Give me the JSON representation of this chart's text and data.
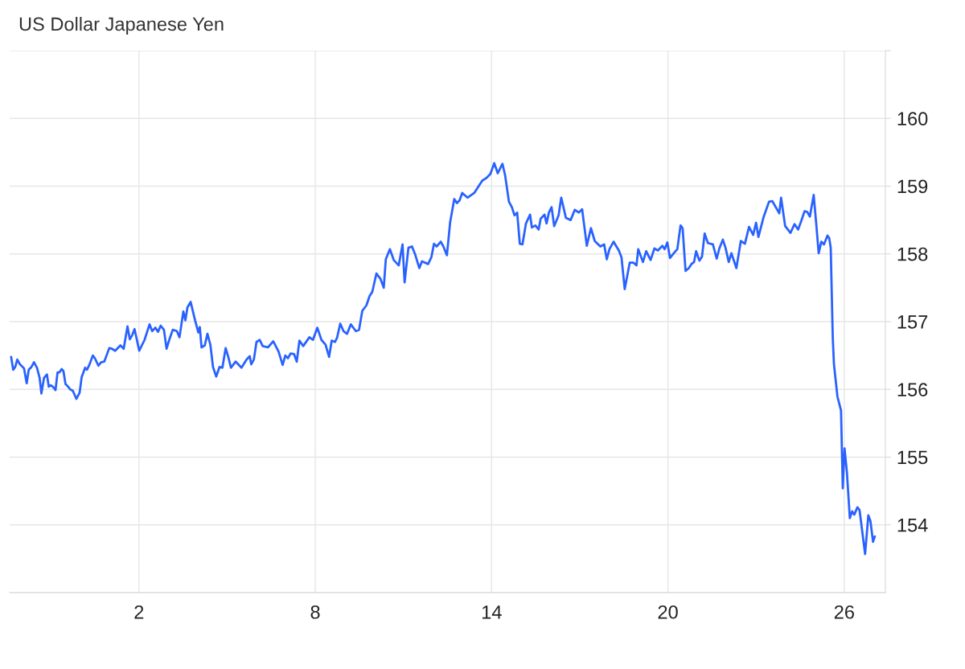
{
  "chart_data": {
    "type": "line",
    "title": "US Dollar Japanese Yen",
    "color": "#2962ff",
    "x": [
      -2.35,
      -2.28,
      -2.21,
      -2.14,
      -2.05,
      -1.91,
      -1.82,
      -1.75,
      -1.66,
      -1.57,
      -1.47,
      -1.38,
      -1.32,
      -1.23,
      -1.13,
      -1.07,
      -1.0,
      -0.91,
      -0.84,
      -0.77,
      -0.71,
      -0.63,
      -0.57,
      -0.5,
      -0.41,
      -0.34,
      -0.25,
      -0.13,
      -0.02,
      0.05,
      0.17,
      0.23,
      0.32,
      0.43,
      0.5,
      0.62,
      0.71,
      0.82,
      0.99,
      1.08,
      1.19,
      1.37,
      1.48,
      1.61,
      1.69,
      1.77,
      1.85,
      2.01,
      2.19,
      2.36,
      2.45,
      2.56,
      2.65,
      2.74,
      2.85,
      2.94,
      3.03,
      3.15,
      3.29,
      3.38,
      3.51,
      3.58,
      3.65,
      3.76,
      3.91,
      4.02,
      4.07,
      4.13,
      4.24,
      4.33,
      4.43,
      4.52,
      4.63,
      4.74,
      4.84,
      4.95,
      5.04,
      5.13,
      5.29,
      5.49,
      5.66,
      5.77,
      5.82,
      5.91,
      6.0,
      6.11,
      6.21,
      6.39,
      6.57,
      6.75,
      6.89,
      6.98,
      7.07,
      7.16,
      7.28,
      7.37,
      7.46,
      7.59,
      7.8,
      7.92,
      8.07,
      8.21,
      8.35,
      8.47,
      8.56,
      8.67,
      8.74,
      8.85,
      8.96,
      9.08,
      9.21,
      9.38,
      9.49,
      9.6,
      9.74,
      9.85,
      9.94,
      10.08,
      10.22,
      10.33,
      10.4,
      10.54,
      10.67,
      10.84,
      10.97,
      11.04,
      11.17,
      11.29,
      11.4,
      11.54,
      11.63,
      11.84,
      11.95,
      12.04,
      12.13,
      12.27,
      12.36,
      12.48,
      12.59,
      12.73,
      12.82,
      12.91,
      13.0,
      13.18,
      13.41,
      13.68,
      13.82,
      13.96,
      14.09,
      14.21,
      14.37,
      14.46,
      14.59,
      14.69,
      14.78,
      14.87,
      14.96,
      15.05,
      15.17,
      15.31,
      15.37,
      15.49,
      15.6,
      15.67,
      15.8,
      15.87,
      15.95,
      16.04,
      16.13,
      16.28,
      16.37,
      16.53,
      16.69,
      16.83,
      16.97,
      17.08,
      17.24,
      17.38,
      17.51,
      17.7,
      17.83,
      17.92,
      18.01,
      18.15,
      18.33,
      18.42,
      18.53,
      18.7,
      18.83,
      18.93,
      18.99,
      19.15,
      19.26,
      19.41,
      19.54,
      19.66,
      19.81,
      19.89,
      19.98,
      20.07,
      20.2,
      20.32,
      20.43,
      20.5,
      20.6,
      20.71,
      20.8,
      20.89,
      20.96,
      21.07,
      21.16,
      21.25,
      21.36,
      21.53,
      21.66,
      21.75,
      21.87,
      21.96,
      22.07,
      22.16,
      22.33,
      22.48,
      22.62,
      22.76,
      22.9,
      23.0,
      23.08,
      23.26,
      23.44,
      23.55,
      23.79,
      23.85,
      23.99,
      24.17,
      24.31,
      24.43,
      24.54,
      24.65,
      24.74,
      24.83,
      24.96,
      25.05,
      25.13,
      25.22,
      25.31,
      25.43,
      25.49,
      25.54,
      25.61,
      25.65,
      25.77,
      25.89,
      25.95,
      26.01,
      26.09,
      26.19,
      26.27,
      26.34,
      26.45,
      26.52,
      26.71,
      26.82,
      26.89,
      26.98,
      27.04
    ],
    "values": [
      156.48,
      156.29,
      156.33,
      156.44,
      156.37,
      156.31,
      156.09,
      156.29,
      156.33,
      156.4,
      156.32,
      156.17,
      155.94,
      156.17,
      156.22,
      156.04,
      156.06,
      156.03,
      155.99,
      156.25,
      156.25,
      156.3,
      156.27,
      156.08,
      156.04,
      156.0,
      155.98,
      155.86,
      155.95,
      156.18,
      156.32,
      156.29,
      156.37,
      156.5,
      156.46,
      156.35,
      156.4,
      156.41,
      156.61,
      156.6,
      156.57,
      156.65,
      156.6,
      156.93,
      156.74,
      156.8,
      156.89,
      156.57,
      156.73,
      156.96,
      156.86,
      156.91,
      156.85,
      156.94,
      156.88,
      156.6,
      156.73,
      156.88,
      156.86,
      156.77,
      157.15,
      157.02,
      157.21,
      157.29,
      157.02,
      156.84,
      156.92,
      156.62,
      156.65,
      156.82,
      156.66,
      156.33,
      156.19,
      156.33,
      156.32,
      156.61,
      156.48,
      156.32,
      156.41,
      156.32,
      156.44,
      156.49,
      156.37,
      156.44,
      156.7,
      156.73,
      156.64,
      156.62,
      156.71,
      156.56,
      156.36,
      156.5,
      156.46,
      156.53,
      156.52,
      156.41,
      156.72,
      156.64,
      156.77,
      156.73,
      156.91,
      156.73,
      156.66,
      156.48,
      156.72,
      156.7,
      156.76,
      156.97,
      156.86,
      156.82,
      156.96,
      156.86,
      156.88,
      157.16,
      157.24,
      157.38,
      157.44,
      157.71,
      157.63,
      157.5,
      157.92,
      158.07,
      157.91,
      157.83,
      158.14,
      157.58,
      158.09,
      158.11,
      157.99,
      157.79,
      157.89,
      157.85,
      157.95,
      158.15,
      158.11,
      158.18,
      158.11,
      157.98,
      158.47,
      158.81,
      158.75,
      158.79,
      158.9,
      158.83,
      158.9,
      159.08,
      159.12,
      159.18,
      159.34,
      159.19,
      159.33,
      159.16,
      158.77,
      158.69,
      158.57,
      158.61,
      158.15,
      158.14,
      158.45,
      158.58,
      158.39,
      158.42,
      158.36,
      158.52,
      158.58,
      158.45,
      158.61,
      158.69,
      158.41,
      158.57,
      158.83,
      158.53,
      158.5,
      158.65,
      158.61,
      158.66,
      158.12,
      158.38,
      158.19,
      158.11,
      158.14,
      157.92,
      158.07,
      158.18,
      158.05,
      157.95,
      157.48,
      157.87,
      157.87,
      157.83,
      158.07,
      157.88,
      158.04,
      157.91,
      158.08,
      158.05,
      158.12,
      158.07,
      158.17,
      157.94,
      158.01,
      158.07,
      158.42,
      158.38,
      157.75,
      157.79,
      157.85,
      157.88,
      158.04,
      157.9,
      157.96,
      158.3,
      158.16,
      158.14,
      157.93,
      158.08,
      158.21,
      158.09,
      157.88,
      158.01,
      157.79,
      158.19,
      158.15,
      158.4,
      158.28,
      158.46,
      158.25,
      158.55,
      158.77,
      158.78,
      158.6,
      158.83,
      158.41,
      158.31,
      158.44,
      158.36,
      158.49,
      158.63,
      158.62,
      158.55,
      158.87,
      158.43,
      158.01,
      158.18,
      158.14,
      158.27,
      158.23,
      158.09,
      156.76,
      156.37,
      155.89,
      155.69,
      154.54,
      155.13,
      154.78,
      154.1,
      154.2,
      154.15,
      154.26,
      154.22,
      153.57,
      154.14,
      154.06,
      153.75,
      153.83
    ],
    "xlim": [
      -2.4,
      27.4
    ],
    "xticks": [
      2,
      8,
      14,
      20,
      26
    ],
    "ylim": [
      153,
      161
    ],
    "yticks": [
      154,
      155,
      156,
      157,
      158,
      159,
      160,
      {
        "value": 161,
        "label": null
      }
    ],
    "grid": true
  }
}
